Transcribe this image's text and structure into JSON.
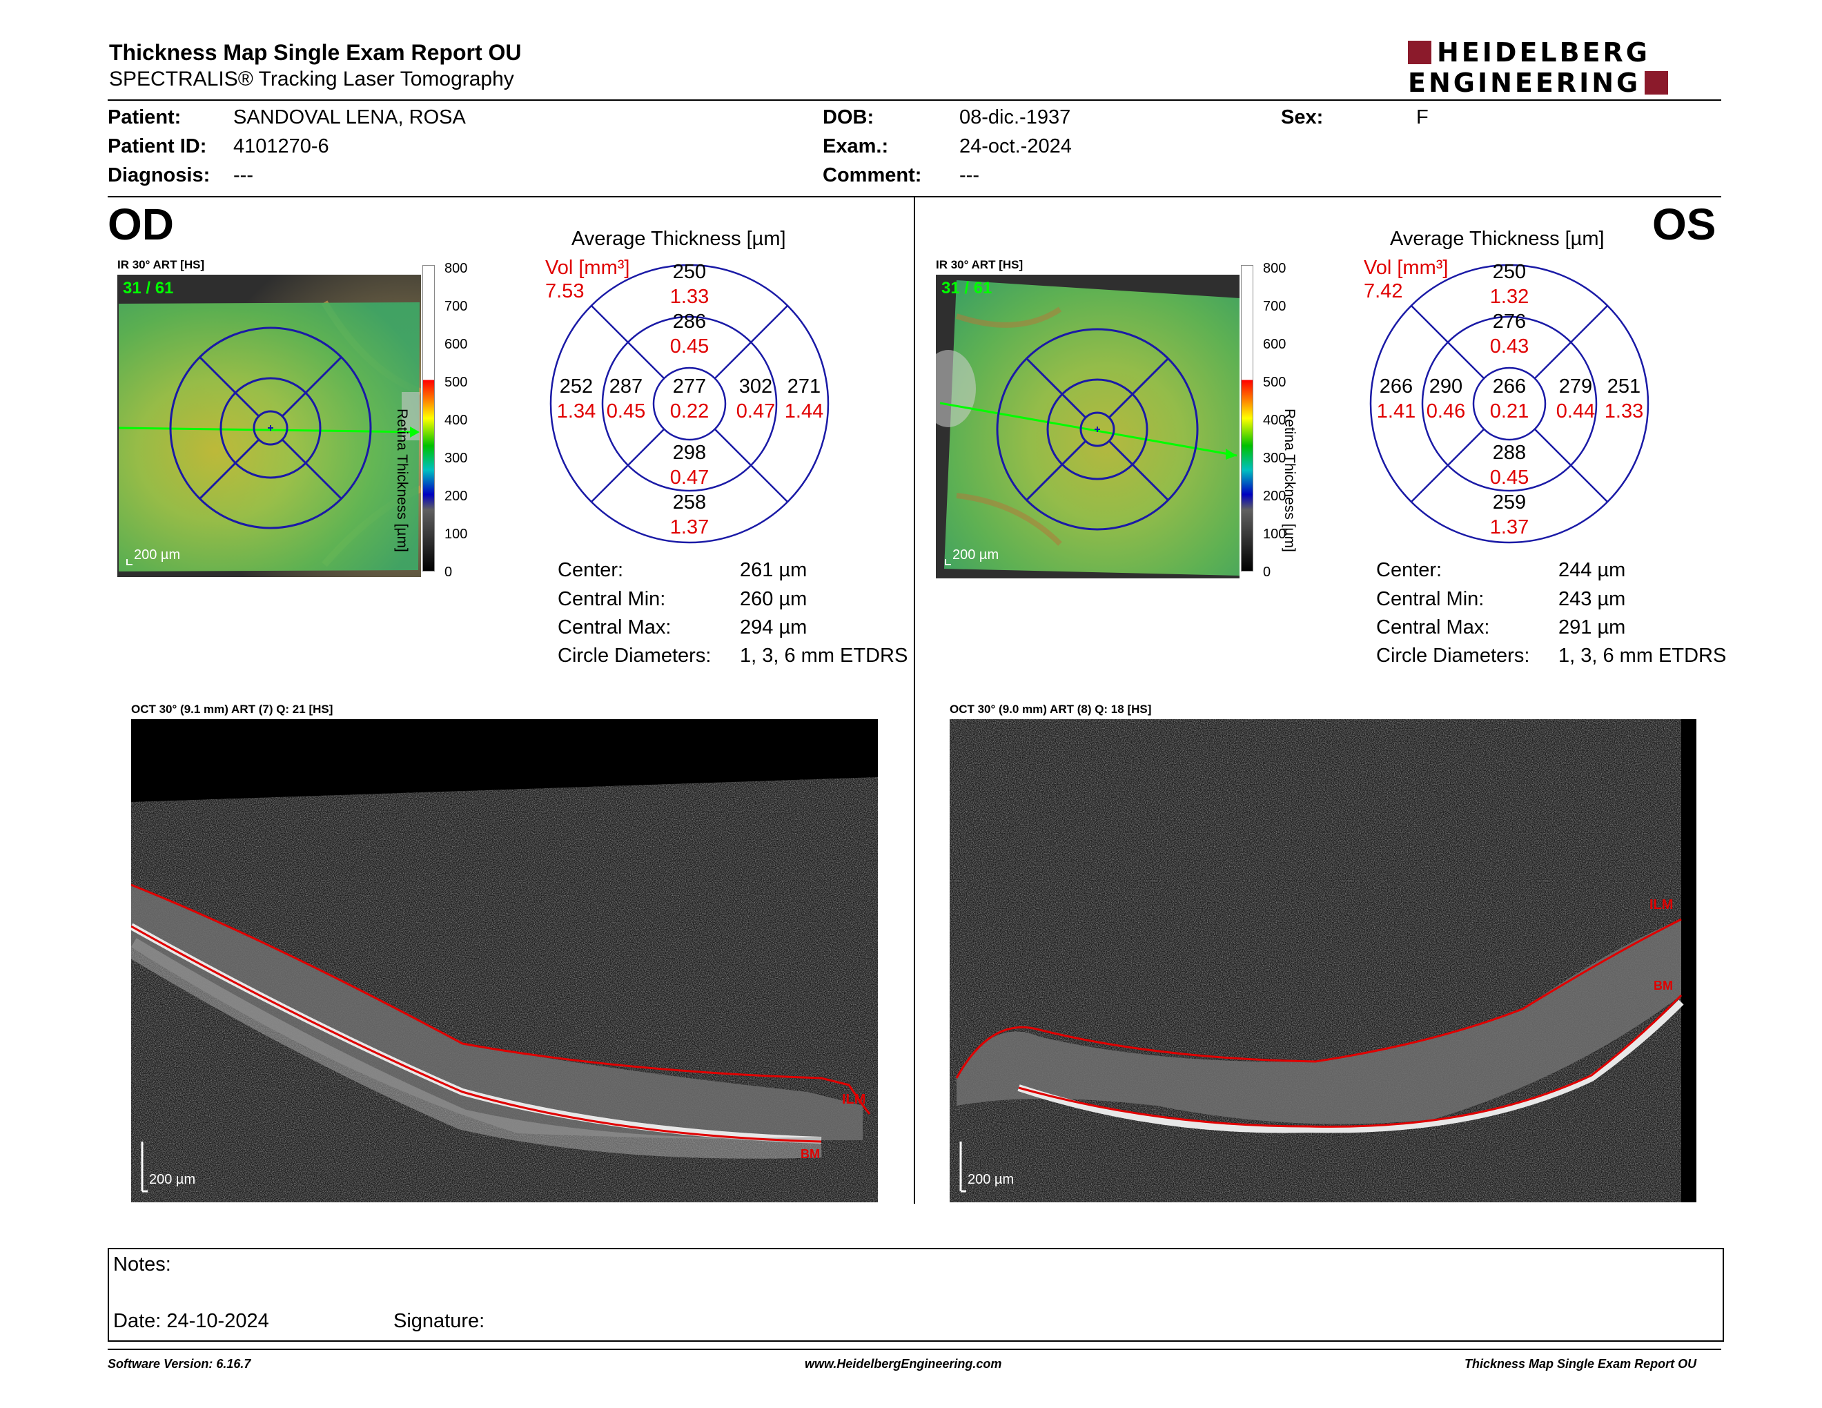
{
  "header": {
    "title": "Thickness Map Single Exam Report OU",
    "subtitle": "SPECTRALIS® Tracking Laser Tomography",
    "logo_line1": "HEIDELBERG",
    "logo_line2": "ENGINEERING",
    "brand_color": "#8b1a2b"
  },
  "patient": {
    "patient_label": "Patient:",
    "patient_value": "SANDOVAL LENA, ROSA",
    "id_label": "Patient ID:",
    "id_value": "4101270-6",
    "diagnosis_label": "Diagnosis:",
    "diagnosis_value": "---",
    "dob_label": "DOB:",
    "dob_value": "08-dic.-1937",
    "exam_label": "Exam.:",
    "exam_value": "24-oct.-2024",
    "comment_label": "Comment:",
    "comment_value": "---",
    "sex_label": "Sex:",
    "sex_value": "F"
  },
  "od": {
    "eye": "OD",
    "ir_label": "IR 30° ART [HS]",
    "frame": "31 / 61",
    "scale": "200 µm",
    "colorbar_ticks": [
      "800",
      "700",
      "600",
      "500",
      "400",
      "300",
      "200",
      "100",
      "0"
    ],
    "colorbar_title": "Retina Thickness [µm]",
    "chart_title": "Average Thickness [µm]",
    "vol_label": "Vol [mm³]",
    "vol_value": "7.53",
    "sectors": {
      "outer_sup": {
        "t": "250",
        "v": "1.33"
      },
      "inner_sup": {
        "t": "286",
        "v": "0.45"
      },
      "outer_temp": {
        "t": "252",
        "v": "1.34"
      },
      "inner_temp": {
        "t": "287",
        "v": "0.45"
      },
      "center": {
        "t": "277",
        "v": "0.22"
      },
      "inner_nas": {
        "t": "302",
        "v": "0.47"
      },
      "outer_nas": {
        "t": "271",
        "v": "1.44"
      },
      "inner_inf": {
        "t": "298",
        "v": "0.47"
      },
      "outer_inf": {
        "t": "258",
        "v": "1.37"
      }
    },
    "stats": [
      {
        "label": "Center:",
        "value": "261 µm"
      },
      {
        "label": "Central Min:",
        "value": "260 µm"
      },
      {
        "label": "Central Max:",
        "value": "294 µm"
      },
      {
        "label": "Circle Diameters:",
        "value": "1, 3, 6 mm ETDRS"
      }
    ],
    "oct_label": "OCT 30° (9.1 mm) ART (7) Q: 21 [HS]",
    "oct_scale": "200 µm",
    "ilm": "ILM",
    "bm": "BM"
  },
  "os": {
    "eye": "OS",
    "ir_label": "IR 30° ART [HS]",
    "frame": "31 / 61",
    "scale": "200 µm",
    "colorbar_ticks": [
      "800",
      "700",
      "600",
      "500",
      "400",
      "300",
      "200",
      "100",
      "0"
    ],
    "colorbar_title": "Retina Thickness [µm]",
    "chart_title": "Average Thickness [µm]",
    "vol_label": "Vol [mm³]",
    "vol_value": "7.42",
    "sectors": {
      "outer_sup": {
        "t": "250",
        "v": "1.32"
      },
      "inner_sup": {
        "t": "276",
        "v": "0.43"
      },
      "outer_temp": {
        "t": "266",
        "v": "1.41"
      },
      "inner_temp": {
        "t": "290",
        "v": "0.46"
      },
      "center": {
        "t": "266",
        "v": "0.21"
      },
      "inner_nas": {
        "t": "279",
        "v": "0.44"
      },
      "outer_nas": {
        "t": "251",
        "v": "1.33"
      },
      "inner_inf": {
        "t": "288",
        "v": "0.45"
      },
      "outer_inf": {
        "t": "259",
        "v": "1.37"
      }
    },
    "stats": [
      {
        "label": "Center:",
        "value": "244 µm"
      },
      {
        "label": "Central Min:",
        "value": "243 µm"
      },
      {
        "label": "Central Max:",
        "value": "291 µm"
      },
      {
        "label": "Circle Diameters:",
        "value": "1, 3, 6 mm ETDRS"
      }
    ],
    "oct_label": "OCT 30° (9.0 mm) ART (8) Q: 18 [HS]",
    "oct_scale": "200 µm",
    "ilm": "ILM",
    "bm": "BM"
  },
  "notes": {
    "notes_label": "Notes:",
    "date_label": "Date: 24-10-2024",
    "signature_label": "Signature:"
  },
  "footer": {
    "software": "Software Version: 6.16.7",
    "website": "www.HeidelbergEngineering.com",
    "report": "Thickness Map Single Exam Report OU"
  },
  "colors": {
    "grid_blue": "#1a1aa6",
    "value_red": "#e00000",
    "scan_green": "#00ff00",
    "oct_line_red": "#e00000"
  }
}
